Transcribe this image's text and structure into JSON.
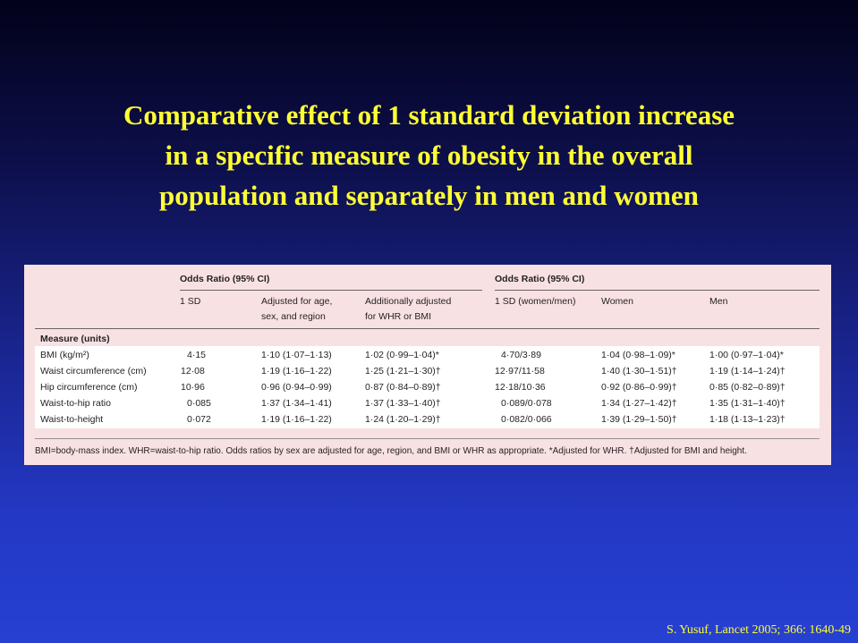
{
  "slide": {
    "title_lines": [
      "Comparative effect of 1 standard deviation increase",
      "in a specific measure of obesity in the overall",
      "population and separately in men and women"
    ],
    "citation": "S. Yusuf, Lancet 2005; 366: 1640-49"
  },
  "table": {
    "group_headers": [
      "Odds Ratio (95% CI)",
      "Odds Ratio (95% CI)"
    ],
    "columns": [
      "1 SD",
      "Adjusted for age, sex, and region",
      "Additionally adjusted for WHR or BMI",
      "1 SD (women/men)",
      "Women",
      "Men"
    ],
    "col3_line1": "Adjusted for age,",
    "col3_line2": "sex, and region",
    "col4_line1": "Additionally adjusted",
    "col4_line2": "for WHR or BMI",
    "section_label": "Measure (units)",
    "rows": [
      {
        "measure": "BMI (kg/m²)",
        "sd": "4·15",
        "adj": "1·10 (1·07–1·13)",
        "add": "1·02 (0·99–1·04)*",
        "sd_wm": "4·70/3·89",
        "women": "1·04 (0·98–1·09)*",
        "men": "1·00 (0·97–1·04)*"
      },
      {
        "measure": "Waist circumference (cm)",
        "sd": "12·08",
        "adj": "1·19 (1·16–1·22)",
        "add": "1·25 (1·21–1·30)†",
        "sd_wm": "12·97/11·58",
        "women": "1·40 (1·30–1·51)†",
        "men": "1·19 (1·14–1·24)†"
      },
      {
        "measure": "Hip circumference (cm)",
        "sd": "10·96",
        "adj": "0·96 (0·94–0·99)",
        "add": "0·87 (0·84–0·89)†",
        "sd_wm": "12·18/10·36",
        "women": "0·92 (0·86–0·99)†",
        "men": "0·85 (0·82–0·89)†"
      },
      {
        "measure": "Waist-to-hip ratio",
        "sd": "0·085",
        "adj": "1·37 (1·34–1·41)",
        "add": "1·37 (1·33–1·40)†",
        "sd_wm": "0·089/0·078",
        "women": "1·34 (1·27–1·42)†",
        "men": "1·35 (1·31–1·40)†"
      },
      {
        "measure": "Waist-to-height",
        "sd": "0·072",
        "adj": "1·19 (1·16–1·22)",
        "add": "1·24 (1·20–1·29)†",
        "sd_wm": "0·082/0·066",
        "women": "1·39 (1·29–1·50)†",
        "men": "1·18 (1·13–1·23)†"
      }
    ],
    "footnote": "BMI=body-mass index. WHR=waist-to-hip ratio. Odds ratios by sex are adjusted for age, region, and BMI or WHR as appropriate. *Adjusted for WHR. †Adjusted for BMI and height."
  }
}
